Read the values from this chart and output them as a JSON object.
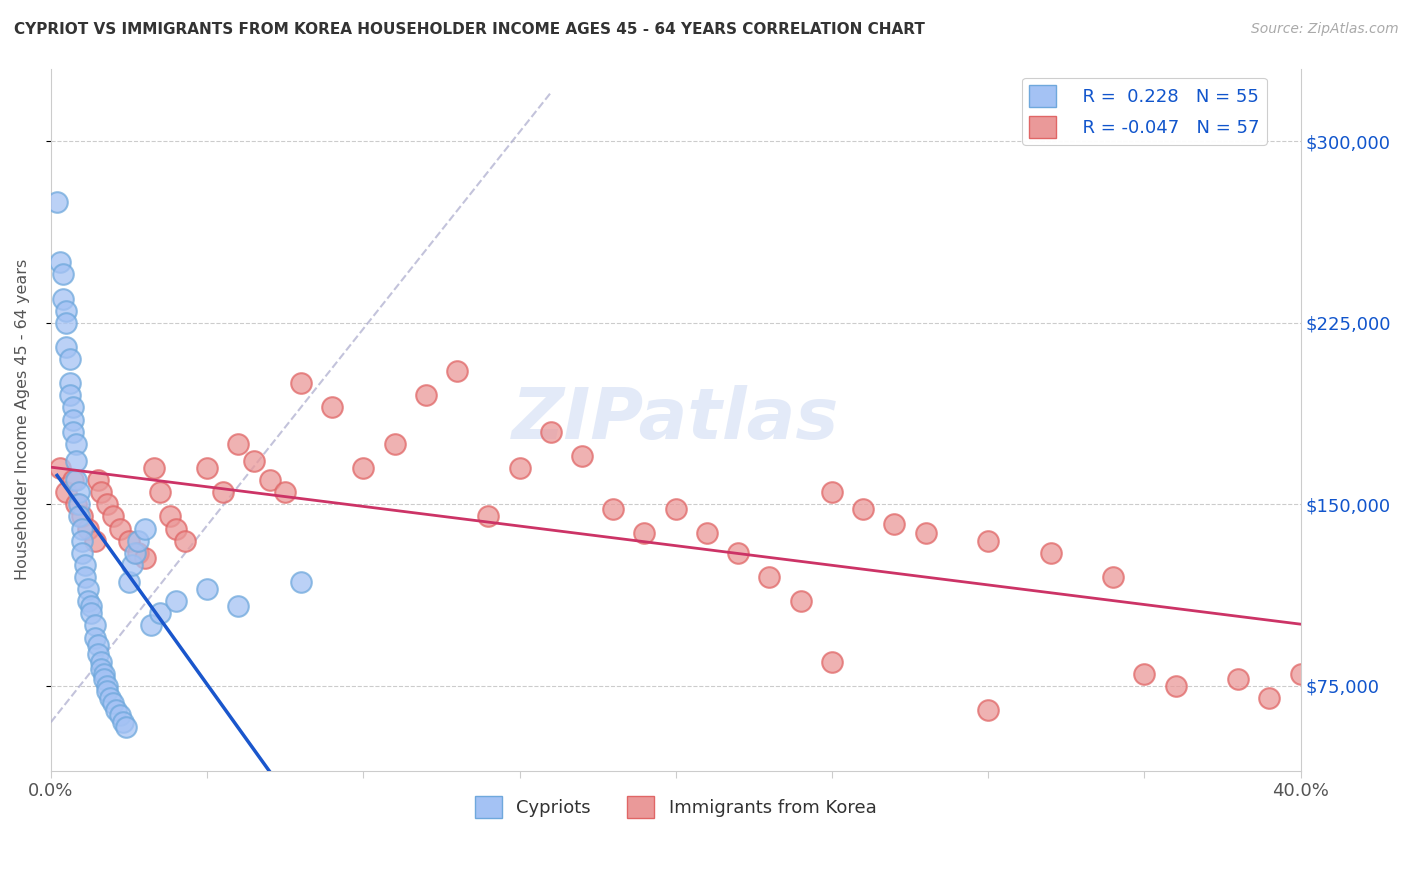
{
  "title": "CYPRIOT VS IMMIGRANTS FROM KOREA HOUSEHOLDER INCOME AGES 45 - 64 YEARS CORRELATION CHART",
  "source": "Source: ZipAtlas.com",
  "ylabel": "Householder Income Ages 45 - 64 years",
  "xlim": [
    0.0,
    0.4
  ],
  "ylim": [
    40000,
    330000
  ],
  "yticks": [
    75000,
    150000,
    225000,
    300000
  ],
  "ytick_labels_right": [
    "$75,000",
    "$150,000",
    "$225,000",
    "$300,000"
  ],
  "xtick_positions": [
    0.0,
    0.05,
    0.1,
    0.15,
    0.2,
    0.25,
    0.3,
    0.35,
    0.4
  ],
  "xtick_labels": [
    "0.0%",
    "",
    "",
    "",
    "",
    "",
    "",
    "",
    "40.0%"
  ],
  "blue_R": 0.228,
  "blue_N": 55,
  "pink_R": -0.047,
  "pink_N": 57,
  "blue_face_color": "#a4c2f4",
  "blue_edge_color": "#6fa8dc",
  "pink_face_color": "#ea9999",
  "pink_edge_color": "#e06666",
  "blue_line_color": "#1a56cc",
  "pink_line_color": "#cc3366",
  "grid_color": "#cccccc",
  "diag_color": "#aaaacc",
  "title_color": "#333333",
  "source_color": "#aaaaaa",
  "ylabel_color": "#555555",
  "right_ytick_color": "#1155cc",
  "legend_label_blue": "Cypriots",
  "legend_label_pink": "Immigrants from Korea",
  "watermark_text": "ZIPatlas",
  "watermark_color": "#bbccee",
  "marker_size": 220,
  "blue_x": [
    0.002,
    0.003,
    0.004,
    0.004,
    0.005,
    0.005,
    0.005,
    0.006,
    0.006,
    0.006,
    0.007,
    0.007,
    0.007,
    0.008,
    0.008,
    0.008,
    0.009,
    0.009,
    0.009,
    0.01,
    0.01,
    0.01,
    0.011,
    0.011,
    0.012,
    0.012,
    0.013,
    0.013,
    0.014,
    0.014,
    0.015,
    0.015,
    0.016,
    0.016,
    0.017,
    0.017,
    0.018,
    0.018,
    0.019,
    0.02,
    0.021,
    0.022,
    0.023,
    0.024,
    0.025,
    0.026,
    0.027,
    0.028,
    0.03,
    0.032,
    0.035,
    0.04,
    0.05,
    0.06,
    0.08
  ],
  "blue_y": [
    275000,
    250000,
    245000,
    235000,
    230000,
    225000,
    215000,
    210000,
    200000,
    195000,
    190000,
    185000,
    180000,
    175000,
    168000,
    160000,
    155000,
    150000,
    145000,
    140000,
    135000,
    130000,
    125000,
    120000,
    115000,
    110000,
    108000,
    105000,
    100000,
    95000,
    92000,
    88000,
    85000,
    82000,
    80000,
    78000,
    75000,
    73000,
    70000,
    68000,
    65000,
    63000,
    60000,
    58000,
    118000,
    125000,
    130000,
    135000,
    140000,
    100000,
    105000,
    110000,
    115000,
    108000,
    118000
  ],
  "pink_x": [
    0.003,
    0.005,
    0.007,
    0.008,
    0.01,
    0.012,
    0.014,
    0.015,
    0.016,
    0.018,
    0.02,
    0.022,
    0.025,
    0.028,
    0.03,
    0.033,
    0.035,
    0.038,
    0.04,
    0.043,
    0.05,
    0.055,
    0.06,
    0.065,
    0.07,
    0.075,
    0.08,
    0.09,
    0.1,
    0.11,
    0.12,
    0.13,
    0.14,
    0.15,
    0.16,
    0.17,
    0.18,
    0.19,
    0.2,
    0.21,
    0.22,
    0.23,
    0.24,
    0.25,
    0.26,
    0.27,
    0.28,
    0.3,
    0.32,
    0.34,
    0.35,
    0.36,
    0.38,
    0.39,
    0.4,
    0.25,
    0.3
  ],
  "pink_y": [
    165000,
    155000,
    160000,
    150000,
    145000,
    140000,
    135000,
    160000,
    155000,
    150000,
    145000,
    140000,
    135000,
    130000,
    128000,
    165000,
    155000,
    145000,
    140000,
    135000,
    165000,
    155000,
    175000,
    168000,
    160000,
    155000,
    200000,
    190000,
    165000,
    175000,
    195000,
    205000,
    145000,
    165000,
    180000,
    170000,
    148000,
    138000,
    148000,
    138000,
    130000,
    120000,
    110000,
    155000,
    148000,
    142000,
    138000,
    135000,
    130000,
    120000,
    80000,
    75000,
    78000,
    70000,
    80000,
    85000,
    65000
  ]
}
